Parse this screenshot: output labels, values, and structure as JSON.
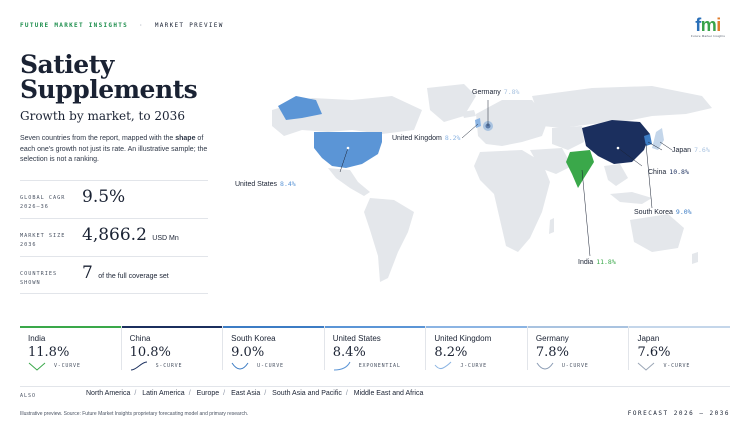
{
  "header": {
    "brand": "FUTURE MARKET INSIGHTS",
    "separator": "·",
    "section": "MARKET PREVIEW",
    "logo_text_f": "f",
    "logo_text_m": "m",
    "logo_text_i": "i",
    "logo_tagline": "Future Market Insights"
  },
  "title": "Satiety Supplements",
  "subtitle": "Growth by market, to 2036",
  "description_pre": "Seven countries from the report, mapped with the ",
  "description_bold": "shape",
  "description_post": " of each one's growth not just its rate. An illustrative sample; the selection is not a ranking.",
  "stats": [
    {
      "label_1": "GLOBAL CAGR",
      "label_2": "2026–36",
      "value": "9.5%",
      "unit": ""
    },
    {
      "label_1": "MARKET SIZE",
      "label_2": "2036",
      "value": "4,866.2",
      "unit": "USD Mn"
    },
    {
      "label_1": "COUNTRIES",
      "label_2": "SHOWN",
      "value": "7",
      "unit": "of the full coverage set"
    }
  ],
  "map_labels": {
    "germany": {
      "name": "Germany",
      "value": "7.8%"
    },
    "united_kingdom": {
      "name": "United Kingdom",
      "value": "8.2%"
    },
    "united_states": {
      "name": "United States",
      "value": "8.4%"
    },
    "japan": {
      "name": "Japan",
      "value": "7.6%"
    },
    "china": {
      "name": "China",
      "value": "10.8%"
    },
    "south_korea": {
      "name": "South Korea",
      "value": "9.0%"
    },
    "india": {
      "name": "India",
      "value": "11.8%"
    }
  },
  "cards": [
    {
      "name": "India",
      "value": "11.8%",
      "curve": "V-CURVE",
      "color": "#3aa84a"
    },
    {
      "name": "China",
      "value": "10.8%",
      "curve": "S-CURVE",
      "color": "#1b2f5e"
    },
    {
      "name": "South Korea",
      "value": "9.0%",
      "curve": "U-CURVE",
      "color": "#3c7cc4"
    },
    {
      "name": "United States",
      "value": "8.4%",
      "curve": "EXPONENTIAL",
      "color": "#5b95d6"
    },
    {
      "name": "United Kingdom",
      "value": "8.2%",
      "curve": "J-CURVE",
      "color": "#8bb4e3"
    },
    {
      "name": "Germany",
      "value": "7.8%",
      "curve": "U-CURVE",
      "color": "#a9c3e0"
    },
    {
      "name": "Japan",
      "value": "7.6%",
      "curve": "V-CURVE",
      "color": "#c4d6ea"
    }
  ],
  "regions": {
    "also": "ALSO",
    "items": [
      "North America",
      "Latin America",
      "Europe",
      "East Asia",
      "South Asia and Pacific",
      "Middle East and Africa"
    ]
  },
  "footer": "Illustrative preview. Source: Future Market Insights proprietary forecasting model and primary research.",
  "forecast": "FORECAST 2026 – 2036"
}
